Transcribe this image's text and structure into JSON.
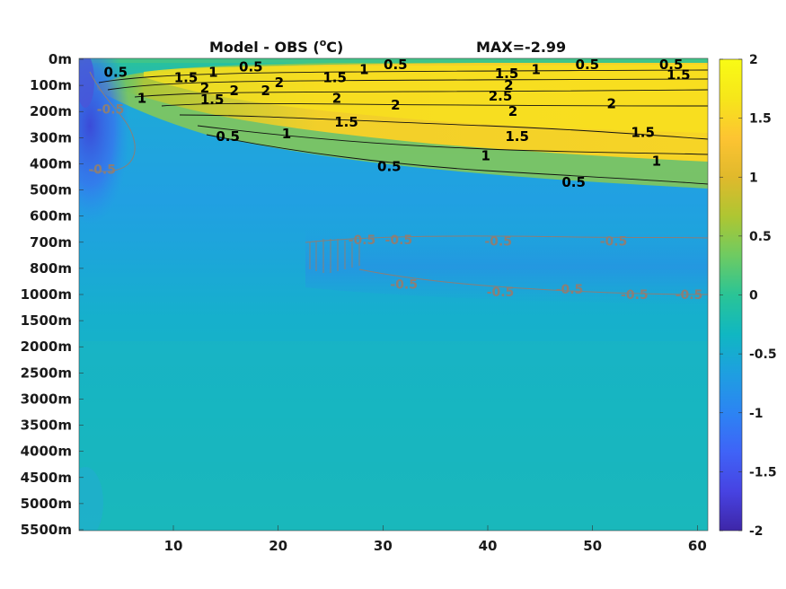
{
  "chart_data": {
    "type": "heatmap",
    "title_left": "Model - OBS (",
    "title_unit_sup": "o",
    "title_unit": "C)",
    "title_right": "MAX=-2.99",
    "y_tick_labels": [
      "0m",
      "100m",
      "200m",
      "300m",
      "400m",
      "500m",
      "600m",
      "700m",
      "800m",
      "1000m",
      "1500m",
      "2000m",
      "2500m",
      "3000m",
      "3500m",
      "4000m",
      "4500m",
      "5000m",
      "5500m"
    ],
    "x_ticks": [
      10,
      20,
      30,
      40,
      50,
      60
    ],
    "x_tick_labels": [
      "10",
      "20",
      "30",
      "40",
      "50",
      "60"
    ],
    "xlim": [
      1,
      61
    ],
    "colorbar": {
      "range": [
        -2,
        2
      ],
      "ticks": [
        2,
        1.5,
        1,
        0.5,
        0,
        -0.5,
        -1,
        -1.5,
        -2
      ],
      "tick_labels": [
        "2",
        "1.5",
        "1",
        "0.5",
        "0",
        "-0.5",
        "-1",
        "-1.5",
        "-2"
      ],
      "colormap": [
        "#3e26a8",
        "#4743e2",
        "#3f63f7",
        "#2c84f3",
        "#1e9fe0",
        "#10b7c2",
        "#2ac496",
        "#6ecb62",
        "#aec632",
        "#e0b92c",
        "#fdc432",
        "#f6e61a",
        "#f9fb15"
      ]
    },
    "contour_labels_positive": [
      {
        "text": "0.5",
        "x": 4.5,
        "y": 0.5
      },
      {
        "text": "1.5",
        "x": 11.2,
        "y": 0.7
      },
      {
        "text": "1",
        "x": 13.8,
        "y": 0.5
      },
      {
        "text": "0.5",
        "x": 17.4,
        "y": 0.3
      },
      {
        "text": "2",
        "x": 13.0,
        "y": 1.1
      },
      {
        "text": "2",
        "x": 15.8,
        "y": 1.2
      },
      {
        "text": "2",
        "x": 18.8,
        "y": 1.2
      },
      {
        "text": "2",
        "x": 20.1,
        "y": 0.9
      },
      {
        "text": "1.5",
        "x": 13.7,
        "y": 1.55
      },
      {
        "text": "1",
        "x": 7.0,
        "y": 1.5
      },
      {
        "text": "1.5",
        "x": 25.4,
        "y": 0.7
      },
      {
        "text": "1",
        "x": 28.2,
        "y": 0.4
      },
      {
        "text": "0.5",
        "x": 31.2,
        "y": 0.2
      },
      {
        "text": "2",
        "x": 25.6,
        "y": 1.5
      },
      {
        "text": "2",
        "x": 31.2,
        "y": 1.75
      },
      {
        "text": "1.5",
        "x": 26.5,
        "y": 2.4
      },
      {
        "text": "1",
        "x": 20.8,
        "y": 2.85
      },
      {
        "text": "0.5",
        "x": 15.2,
        "y": 2.95
      },
      {
        "text": "1.5",
        "x": 41.8,
        "y": 0.55
      },
      {
        "text": "1",
        "x": 44.6,
        "y": 0.4
      },
      {
        "text": "0.5",
        "x": 49.5,
        "y": 0.2
      },
      {
        "text": "2",
        "x": 42.0,
        "y": 1.0
      },
      {
        "text": "2.5",
        "x": 41.2,
        "y": 1.4
      },
      {
        "text": "2",
        "x": 42.4,
        "y": 2.0
      },
      {
        "text": "2",
        "x": 51.8,
        "y": 1.7
      },
      {
        "text": "1.5",
        "x": 42.8,
        "y": 2.95
      },
      {
        "text": "1",
        "x": 39.8,
        "y": 3.7
      },
      {
        "text": "0.5",
        "x": 30.6,
        "y": 4.1
      },
      {
        "text": "0.5",
        "x": 57.5,
        "y": 0.2
      },
      {
        "text": "1.5",
        "x": 58.2,
        "y": 0.6
      },
      {
        "text": "1.5",
        "x": 54.8,
        "y": 2.8
      },
      {
        "text": "1",
        "x": 56.1,
        "y": 3.9
      },
      {
        "text": "0.5",
        "x": 48.2,
        "y": 4.7
      }
    ],
    "contour_labels_negative": [
      {
        "text": "-0.5",
        "x": 4.0,
        "y": 1.9
      },
      {
        "text": "-0.5",
        "x": 3.2,
        "y": 4.2
      },
      {
        "text": "-0.5",
        "x": 28.0,
        "y": 6.9
      },
      {
        "text": "-0.5",
        "x": 31.5,
        "y": 6.9
      },
      {
        "text": "-0.5",
        "x": 41.0,
        "y": 6.95
      },
      {
        "text": "-0.5",
        "x": 52.0,
        "y": 6.95
      },
      {
        "text": "-0.5",
        "x": 32.0,
        "y": 8.6
      },
      {
        "text": "-0.5",
        "x": 41.2,
        "y": 8.9
      },
      {
        "text": "-0.5",
        "x": 47.8,
        "y": 8.8
      },
      {
        "text": "-0.5",
        "x": 54.0,
        "y": 9.0
      },
      {
        "text": "-0.5",
        "x": 59.2,
        "y": 9.0
      }
    ]
  }
}
